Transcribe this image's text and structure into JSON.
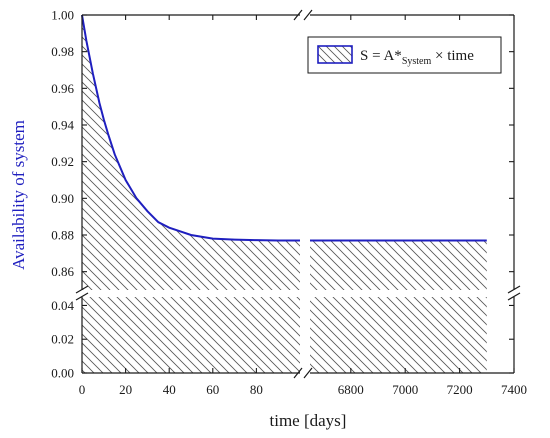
{
  "chart_data": {
    "type": "area",
    "xlabel": "time [days]",
    "ylabel": "Availability of system",
    "legend": {
      "placement": "top-right",
      "label_main": "S = A*",
      "label_sub": "System",
      "label_tail": " × time"
    },
    "x_segments": [
      {
        "xlim": [
          0,
          100
        ],
        "ticks": [
          0,
          20,
          40,
          60,
          80
        ]
      },
      {
        "xlim": [
          6650,
          7400
        ],
        "ticks": [
          6800,
          7000,
          7200,
          7400
        ]
      }
    ],
    "y_segments": [
      {
        "ylim": [
          0,
          0.045
        ],
        "ticks": [
          0.0,
          0.02,
          0.04
        ]
      },
      {
        "ylim": [
          0.85,
          1.0
        ],
        "ticks": [
          0.86,
          0.88,
          0.9,
          0.92,
          0.94,
          0.96,
          0.98,
          1.0
        ]
      }
    ],
    "y_tick_labels": [
      "0.00",
      "0.02",
      "0.04",
      "0.86",
      "0.88",
      "0.90",
      "0.92",
      "0.94",
      "0.96",
      "0.98",
      "1.00"
    ],
    "series": [
      {
        "x": [
          0,
          2,
          5,
          8,
          10,
          12,
          15,
          20,
          25,
          30,
          35,
          40,
          45,
          50,
          60,
          70,
          80,
          90,
          6650,
          6800,
          7000,
          7200,
          7300
        ],
        "y": [
          1.0,
          0.986,
          0.968,
          0.952,
          0.943,
          0.935,
          0.924,
          0.91,
          0.9,
          0.893,
          0.887,
          0.884,
          0.882,
          0.88,
          0.878,
          0.8775,
          0.8772,
          0.877,
          0.877,
          0.877,
          0.877,
          0.877,
          0.877
        ]
      }
    ],
    "line_color": "#1f1fbf",
    "ylabel_color": "#1f1fbf",
    "hatch_color": "#555555",
    "grid": false
  }
}
